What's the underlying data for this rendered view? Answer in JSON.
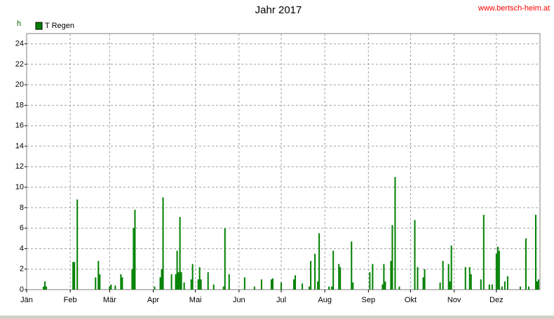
{
  "chart_data": {
    "type": "bar",
    "title": "Jahr 2017",
    "annotation": "www.bertsch-heim.at",
    "y_label": "h",
    "x": [
      13,
      14,
      15,
      34,
      35,
      37,
      50,
      52,
      53,
      60,
      61,
      64,
      68,
      69,
      76,
      77,
      78,
      92,
      96,
      97,
      98,
      104,
      107,
      108,
      109,
      110,
      111,
      113,
      118,
      119,
      123,
      124,
      125,
      130,
      134,
      141,
      142,
      145,
      156,
      163,
      168,
      175,
      176,
      182,
      191,
      192,
      197,
      202,
      203,
      206,
      208,
      209,
      216,
      218,
      219,
      223,
      224,
      232,
      233,
      245,
      247,
      254,
      255,
      256,
      260,
      261,
      263,
      266,
      277,
      279,
      283,
      284,
      295,
      297,
      301,
      302,
      303,
      313,
      316,
      317,
      324,
      326,
      330,
      332,
      335,
      336,
      337,
      339,
      341,
      343,
      352,
      356,
      358,
      363,
      364,
      365
    ],
    "series": [
      {
        "name": "T Regen",
        "color": "#008000",
        "values": [
          0.3,
          0.8,
          0.3,
          2.7,
          2.7,
          8.8,
          1.2,
          2.8,
          1.5,
          0.3,
          0.5,
          0.4,
          1.5,
          1.2,
          2,
          6,
          7.8,
          0.3,
          1.2,
          2,
          9,
          1.5,
          1.5,
          3.8,
          1.7,
          7.1,
          1.7,
          0.7,
          1,
          2.5,
          1,
          2.2,
          1,
          1.7,
          0.5,
          0.3,
          6,
          1.5,
          1.2,
          0.3,
          1,
          1,
          1.1,
          0.7,
          1,
          1.4,
          0.6,
          0.3,
          2.8,
          3.5,
          0.8,
          5.5,
          0.3,
          0.3,
          3.8,
          2.5,
          2.2,
          4.7,
          0.7,
          1.7,
          2.5,
          0.5,
          2.5,
          0.8,
          2.8,
          6.3,
          11,
          0.3,
          6.8,
          2.2,
          1.2,
          2,
          0.7,
          2.8,
          2.5,
          0.8,
          4.3,
          2.2,
          2.2,
          1.5,
          1,
          7.3,
          0.5,
          0.5,
          3.5,
          4.2,
          3.8,
          0.3,
          0.8,
          1.3,
          0.3,
          5,
          0.3,
          7.3,
          0.8,
          1
        ]
      }
    ],
    "xlim": [
      1,
      366
    ],
    "xticks": [
      {
        "value": 1,
        "label": "Jän"
      },
      {
        "value": 32,
        "label": "Feb"
      },
      {
        "value": 60,
        "label": "Mär"
      },
      {
        "value": 91,
        "label": "Apr"
      },
      {
        "value": 121,
        "label": "Mai"
      },
      {
        "value": 152,
        "label": "Jun"
      },
      {
        "value": 182,
        "label": "Jul"
      },
      {
        "value": 213,
        "label": "Aug"
      },
      {
        "value": 244,
        "label": "Sep"
      },
      {
        "value": 274,
        "label": "Okt"
      },
      {
        "value": 305,
        "label": "Nov"
      },
      {
        "value": 335,
        "label": "Dez"
      }
    ],
    "ylim": [
      0,
      25
    ],
    "yticks": [
      0,
      2,
      4,
      6,
      8,
      10,
      12,
      14,
      16,
      18,
      20,
      22,
      24
    ],
    "grid": true,
    "legend": "top-left"
  }
}
